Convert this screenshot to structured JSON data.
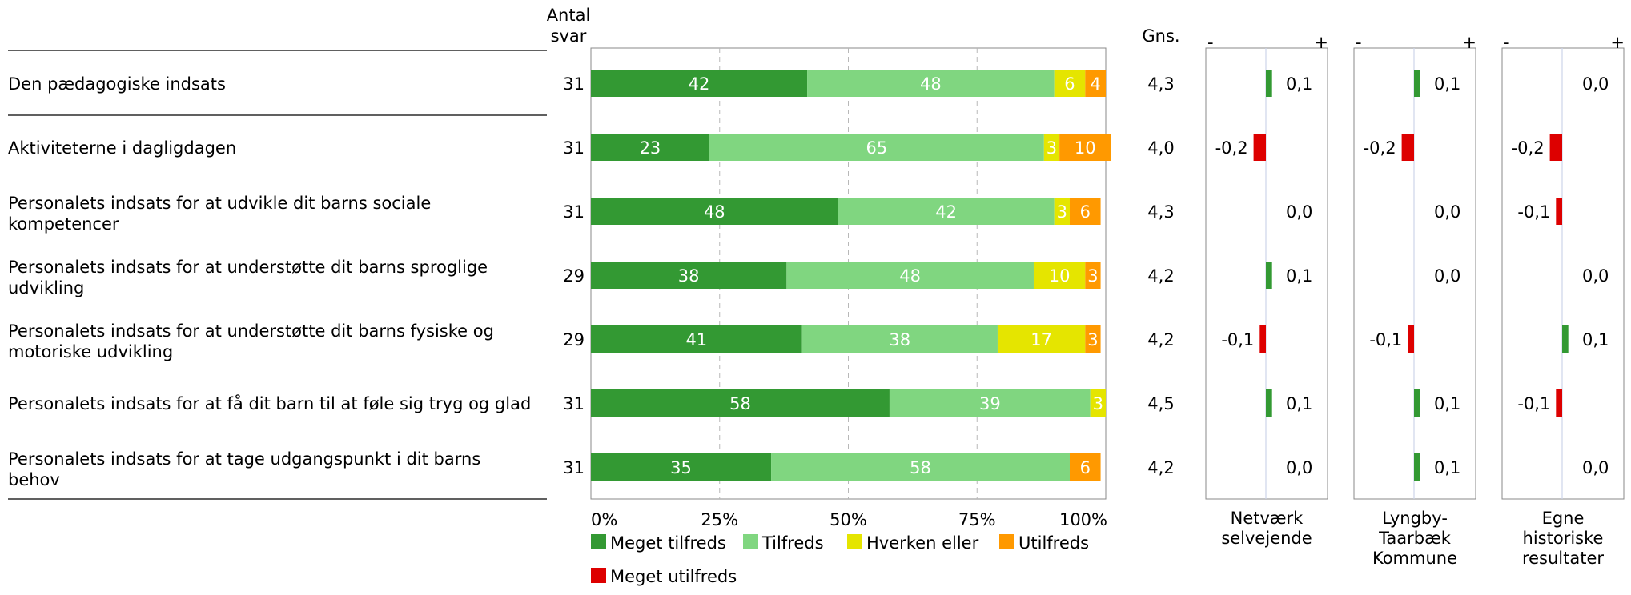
{
  "header": {
    "antal_line1": "Antal",
    "antal_line2": "svar",
    "gns": "Gns.",
    "minus": "-",
    "plus": "+"
  },
  "chart_data": {
    "type": "bar",
    "stacked": true,
    "orientation": "horizontal",
    "categories": [
      "Den pædagogiske indsats",
      "Aktiviteterne i dagligdagen",
      "Personalets indsats for at udvikle dit barns sociale kompetencer",
      "Personalets indsats for at understøtte dit barns sproglige udvikling",
      "Personalets indsats for at understøtte dit barns fysiske og motoriske udvikling",
      "Personalets indsats for at få dit barn til at føle sig tryg og glad",
      "Personalets indsats for at tage udgangspunkt i dit barns behov"
    ],
    "category_lines": [
      [
        "Den pædagogiske indsats"
      ],
      [
        "Aktiviteterne i dagligdagen"
      ],
      [
        "Personalets indsats for at udvikle dit barns sociale",
        "kompetencer"
      ],
      [
        "Personalets indsats for at understøtte dit barns sproglige",
        "udvikling"
      ],
      [
        "Personalets indsats for at understøtte dit barns fysiske og",
        "motoriske udvikling"
      ],
      [
        "Personalets indsats for at få dit barn til at føle sig tryg og glad"
      ],
      [
        "Personalets indsats for at tage udgangspunkt i dit barns",
        "behov"
      ]
    ],
    "antal_svar": [
      "31",
      "31",
      "31",
      "29",
      "29",
      "31",
      "31"
    ],
    "series": [
      {
        "name": "Meget tilfreds",
        "color": "#339933",
        "values": [
          42,
          23,
          48,
          38,
          41,
          58,
          35
        ]
      },
      {
        "name": "Tilfreds",
        "color": "#80d680",
        "values": [
          48,
          65,
          42,
          48,
          38,
          39,
          58
        ]
      },
      {
        "name": "Hverken eller",
        "color": "#e5e500",
        "values": [
          6,
          3,
          3,
          10,
          17,
          3,
          0
        ]
      },
      {
        "name": "Utilfreds",
        "color": "#ff9900",
        "values": [
          4,
          10,
          6,
          3,
          3,
          0,
          6
        ]
      },
      {
        "name": "Meget utilfreds",
        "color": "#dd0000",
        "values": [
          0,
          0,
          0,
          0,
          0,
          0,
          0
        ]
      }
    ],
    "xlim": [
      0,
      100
    ],
    "xticks": [
      "0%",
      "25%",
      "50%",
      "75%",
      "100%"
    ],
    "gridlines": "dashed",
    "legend": "bottom",
    "gns": [
      "4,3",
      "4,0",
      "4,3",
      "4,2",
      "4,2",
      "4,5",
      "4,2"
    ],
    "comparisons": [
      {
        "label_lines": [
          "Netværk",
          "selvejende"
        ],
        "values": [
          0.1,
          -0.2,
          0.0,
          0.1,
          -0.1,
          0.1,
          0.0
        ],
        "labels": [
          "0,1",
          "-0,2",
          "0,0",
          "0,1",
          "-0,1",
          "0,1",
          "0,0"
        ]
      },
      {
        "label_lines": [
          "Lyngby-",
          "Taarbæk",
          "Kommune"
        ],
        "values": [
          0.1,
          -0.2,
          0.0,
          0.0,
          -0.1,
          0.1,
          0.1
        ],
        "labels": [
          "0,1",
          "-0,2",
          "0,0",
          "0,0",
          "-0,1",
          "0,1",
          "0,1"
        ]
      },
      {
        "label_lines": [
          "Egne",
          "historiske",
          "resultater"
        ],
        "values": [
          0.0,
          -0.2,
          -0.1,
          0.0,
          0.1,
          -0.1,
          0.0
        ],
        "labels": [
          "0,0",
          "-0,2",
          "-0,1",
          "0,0",
          "0,1",
          "-0,1",
          "0,0"
        ]
      }
    ],
    "positive_color": "#339933",
    "negative_color": "#dd0000"
  }
}
